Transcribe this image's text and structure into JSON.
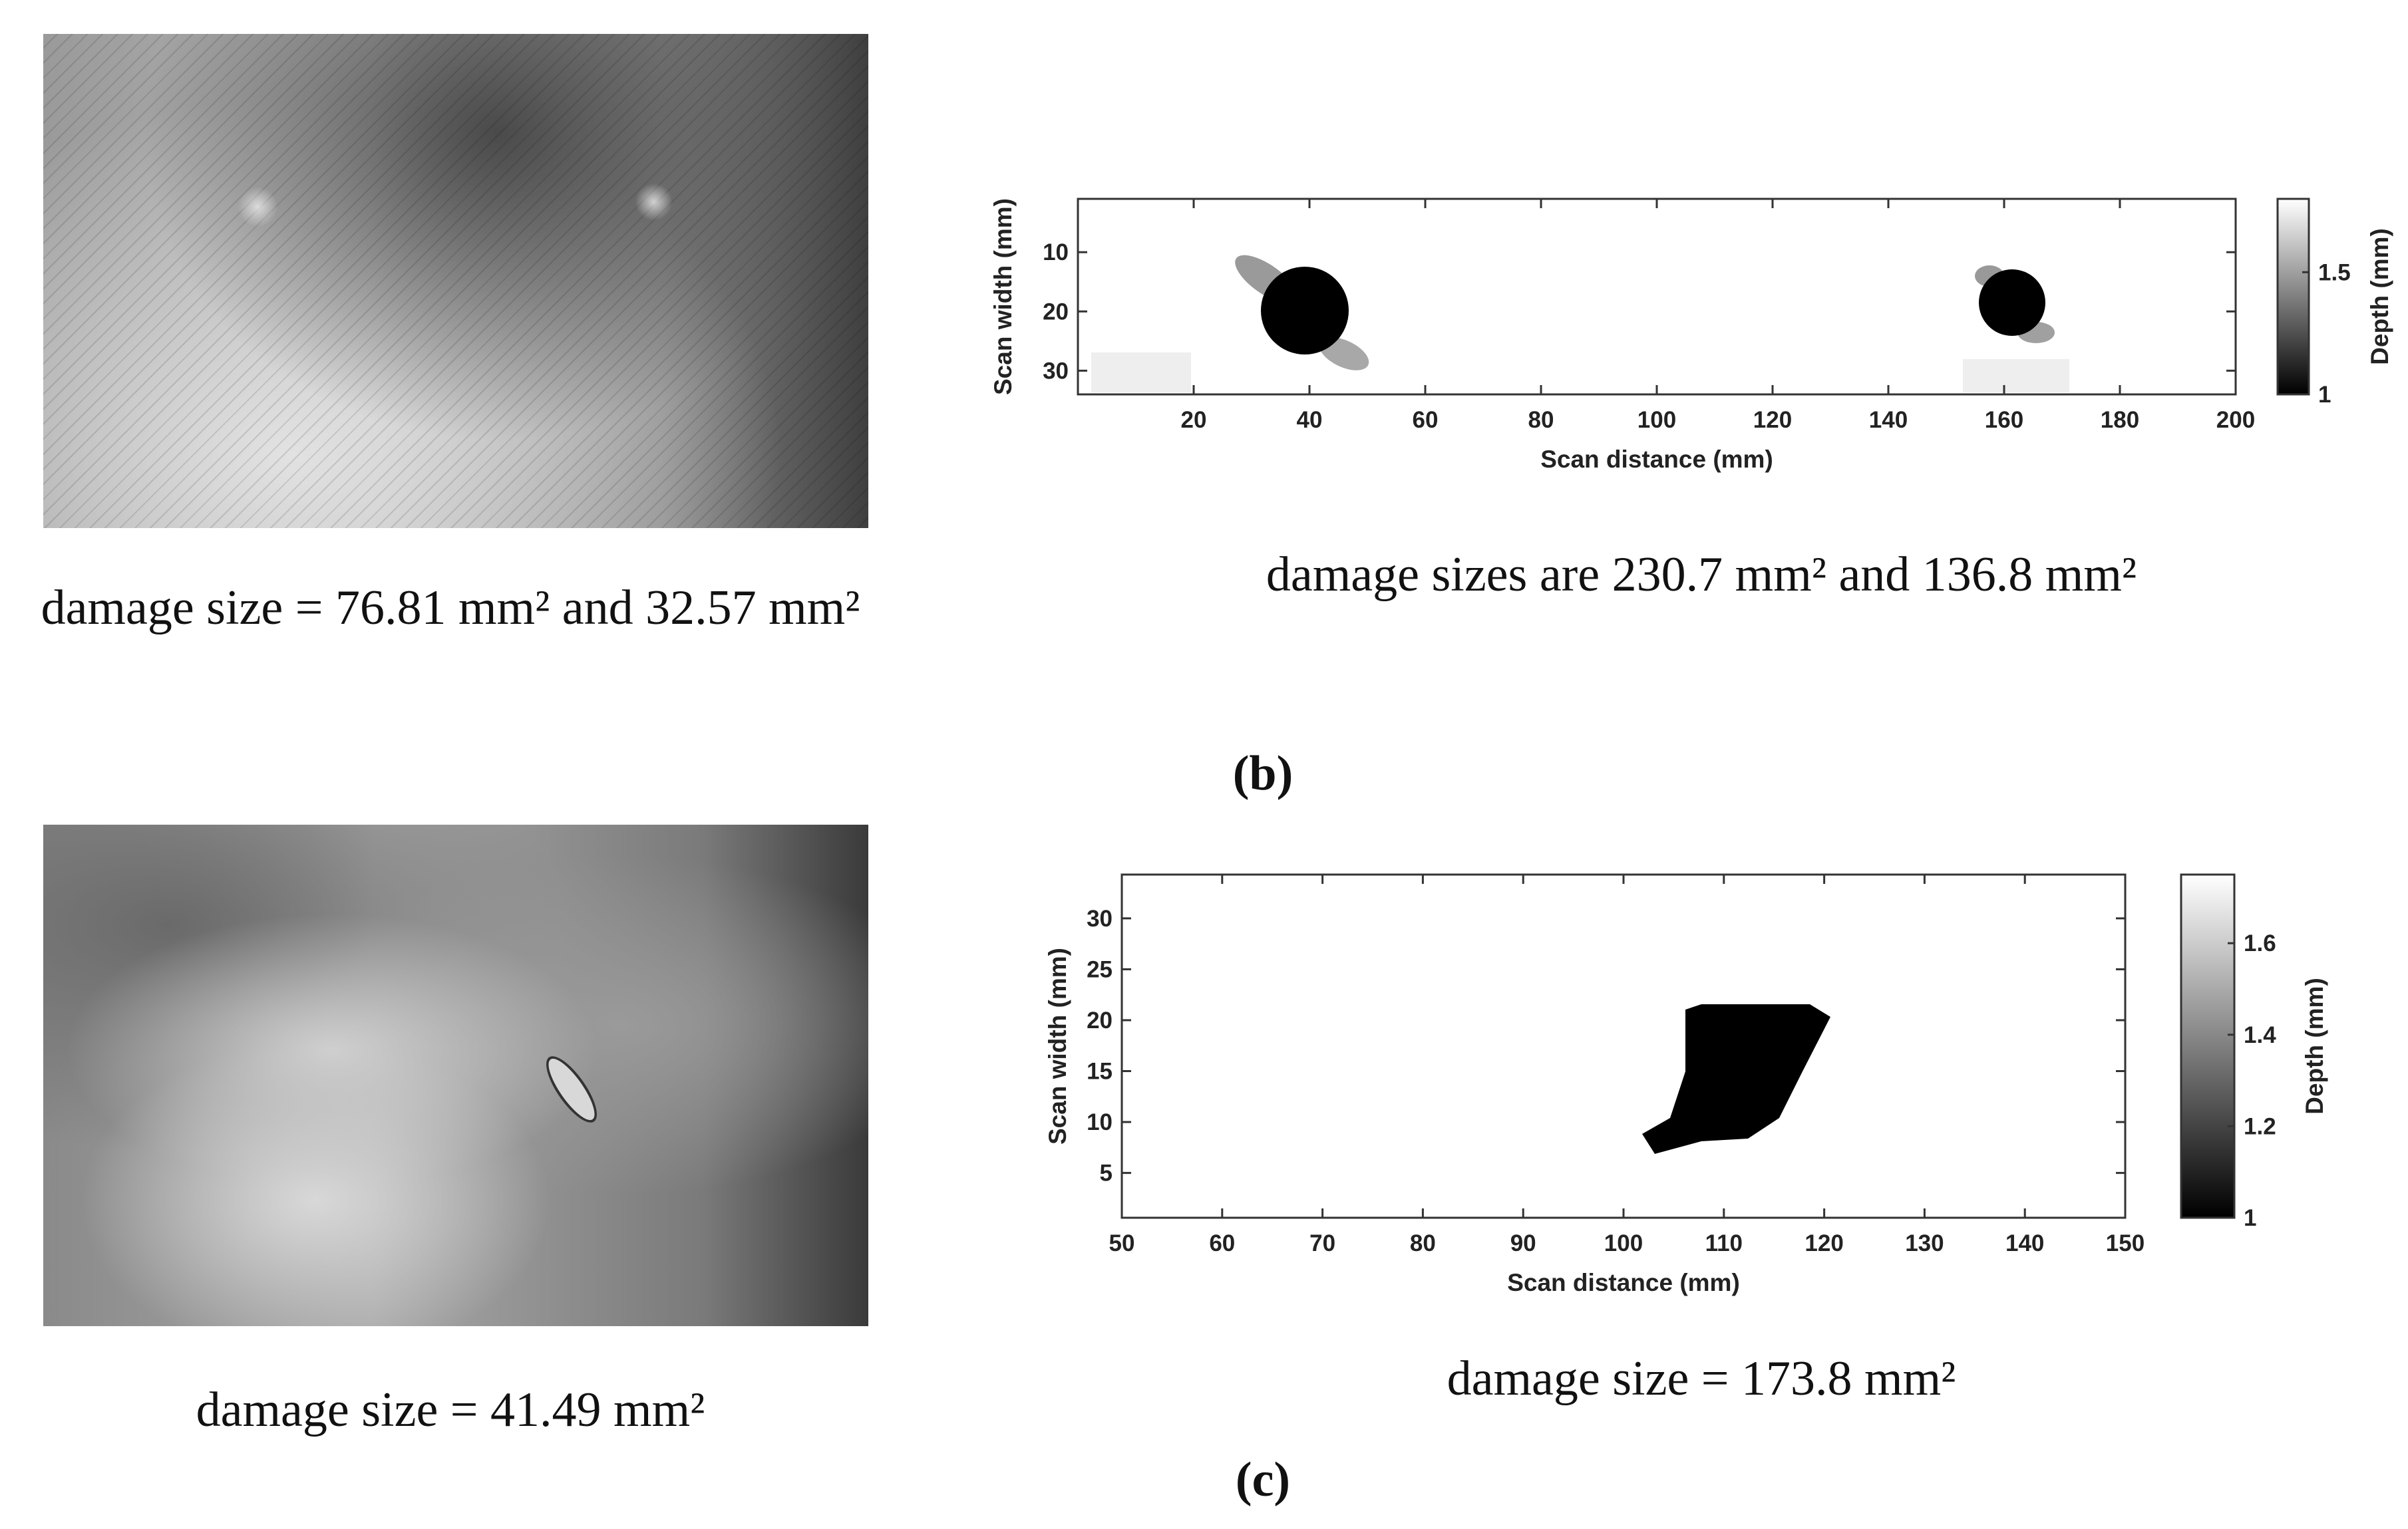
{
  "captions": {
    "a_top": "damage size = 76.81 mm² and 32.57 mm²",
    "b": "damage sizes are 230.7 mm² and 136.8 mm²",
    "b_label": "(b)",
    "a_bottom": "damage size = 41.49 mm²",
    "c": "damage size = 173.8 mm²",
    "c_label": "(c)"
  },
  "chart_data": [
    {
      "type": "heatmap",
      "xlabel": "Scan distance (mm)",
      "ylabel": "Scan width (mm)",
      "colorbar_label": "Depth (mm)",
      "xlim": [
        0,
        200
      ],
      "xticks": [
        20,
        40,
        60,
        80,
        100,
        120,
        140,
        160,
        180,
        200
      ],
      "ylim": [
        1,
        34
      ],
      "yticks": [
        10,
        20,
        30
      ],
      "yreverse": true,
      "clim": [
        1,
        1.8
      ],
      "cticks": [
        1,
        1.5
      ],
      "colormap": [
        "#000000",
        "#ffffff"
      ]
    },
    {
      "type": "heatmap",
      "xlabel": "Scan distance (mm)",
      "ylabel": "Scan width (mm)",
      "colorbar_label": "Depth (mm)",
      "xlim": [
        50,
        150
      ],
      "xticks": [
        50,
        60,
        70,
        80,
        90,
        100,
        110,
        120,
        130,
        140,
        150
      ],
      "ylim": [
        0.6,
        34.3
      ],
      "yticks": [
        5,
        10,
        15,
        20,
        25,
        30
      ],
      "yreverse": false,
      "clim": [
        1,
        1.75
      ],
      "cticks": [
        1,
        1.2,
        1.4,
        1.6
      ],
      "colormap": [
        "#000000",
        "#ffffff"
      ]
    }
  ]
}
